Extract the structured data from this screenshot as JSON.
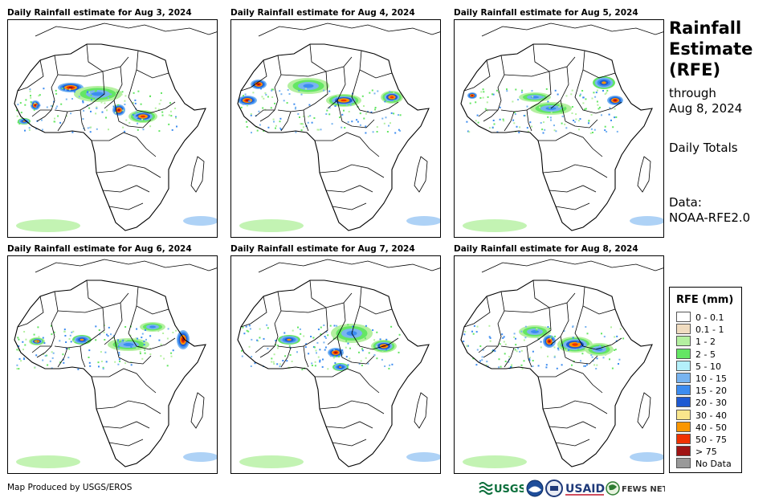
{
  "panels": [
    {
      "title": "Daily Rainfall estimate for Aug 3, 2024"
    },
    {
      "title": "Daily Rainfall estimate for Aug 4, 2024"
    },
    {
      "title": "Daily Rainfall estimate for Aug 5, 2024"
    },
    {
      "title": "Daily Rainfall estimate for Aug 6, 2024"
    },
    {
      "title": "Daily Rainfall estimate for Aug 7, 2024"
    },
    {
      "title": "Daily Rainfall estimate for Aug 8, 2024"
    }
  ],
  "side": {
    "title_line1": "Rainfall",
    "title_line2": "Estimate",
    "title_line3": "(RFE)",
    "through_label": "through",
    "through_date": "Aug 8, 2024",
    "totals_label": "Daily Totals",
    "data_label": "Data:",
    "data_source": "NOAA-RFE2.0"
  },
  "legend": {
    "title": "RFE (mm)",
    "items": [
      {
        "label": "0 - 0.1",
        "color": "#ffffff"
      },
      {
        "label": "0.1 - 1",
        "color": "#f0dcc0"
      },
      {
        "label": "1 - 2",
        "color": "#b4f0a0"
      },
      {
        "label": "2 - 5",
        "color": "#64e664"
      },
      {
        "label": "5 - 10",
        "color": "#b4f0fa"
      },
      {
        "label": "10 - 15",
        "color": "#78b4f0"
      },
      {
        "label": "15 - 20",
        "color": "#3c8cf0"
      },
      {
        "label": "20 - 30",
        "color": "#1e5ad2"
      },
      {
        "label": "30 - 40",
        "color": "#fae68c"
      },
      {
        "label": "40 - 50",
        "color": "#fa9600"
      },
      {
        "label": "50 - 75",
        "color": "#f03200"
      },
      {
        "label": "> 75",
        "color": "#a01414"
      },
      {
        "label": "No Data",
        "color": "#999999"
      }
    ]
  },
  "footer": {
    "credit": "Map Produced by USGS/EROS",
    "logo_usgs": "USGS",
    "logo_usaid": "USAID",
    "logo_fewsnet": "FEWS NET"
  }
}
